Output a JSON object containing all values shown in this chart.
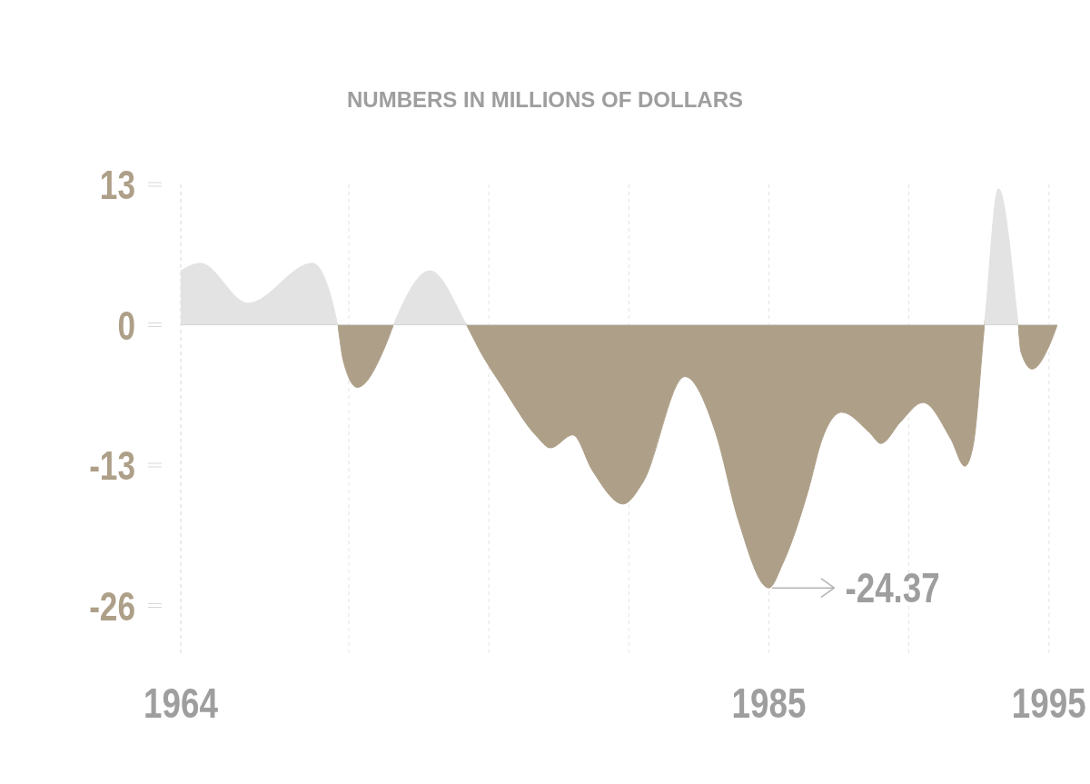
{
  "chart_data": {
    "type": "area",
    "subtitle": "NUMBERS IN MILLIONS OF DOLLARS",
    "x": [
      1964,
      1964.7,
      1966.4,
      1968.7,
      1969.6,
      1969.8,
      1970.3,
      1971.3,
      1971.6,
      1972.9,
      1974.2,
      1974.7,
      1975.5,
      1976.7,
      1977.2,
      1978,
      1978.7,
      1979.8,
      1980.5,
      1982,
      1983.1,
      1983.9,
      1985,
      1985.5,
      1986.4,
      1986.9,
      1987.6,
      1988.6,
      1989,
      1989.7,
      1990.5,
      1991.5,
      1992,
      1992.3,
      1992.7,
      1993.2,
      1993.9,
      1994,
      1994.4,
      1995,
      1995.3
    ],
    "values": [
      5,
      5.7,
      2,
      5.7,
      0,
      -3.3,
      -5.8,
      -2,
      0,
      5,
      0,
      -2.5,
      -5.8,
      -10.3,
      -11.4,
      -10.2,
      -13.5,
      -16.6,
      -14.6,
      -4.8,
      -10,
      -18,
      -24.37,
      -22.1,
      -15.4,
      -10.6,
      -8.1,
      -10,
      -11,
      -9,
      -7.2,
      -10.6,
      -13.1,
      -11.1,
      0,
      12.6,
      0,
      -2.5,
      -4.1,
      -2,
      0
    ],
    "colors": [
      "#e3e3e3",
      "#e3e3e3",
      "#e3e3e3",
      "#e3e3e3",
      "#ae9f88",
      "#ae9f88",
      "#ae9f88",
      "#ae9f88",
      "#ae9f88",
      "#e3e3e3",
      "#ae9f88",
      "#ae9f88",
      "#ae9f88",
      "#ae9f88",
      "#ae9f88",
      "#ae9f88",
      "#ae9f88",
      "#ae9f88",
      "#ae9f88",
      "#ae9f88",
      "#ae9f88",
      "#ae9f88",
      "#ae9f88",
      "#ae9f88",
      "#ae9f88",
      "#ae9f88",
      "#ae9f88",
      "#ae9f88",
      "#ae9f88",
      "#ae9f88",
      "#ae9f88",
      "#ae9f88",
      "#ae9f88",
      "#ae9f88",
      "#ae9f88",
      "#e3e3e3",
      "#ae9f88",
      "#ae9f88",
      "#ae9f88",
      "#ae9f88",
      "#ae9f88"
    ],
    "xlim": [
      1964,
      1995.3
    ],
    "xticks": [
      1964,
      {
        "value": 1970,
        "label": null
      },
      {
        "value": 1975,
        "label": null
      },
      {
        "value": 1980,
        "label": null
      },
      1985,
      {
        "value": 1990,
        "label": null
      },
      1995
    ],
    "ylim": [
      -30.5,
      13
    ],
    "yticks": [
      -26,
      -13,
      0,
      13
    ],
    "grid": "x",
    "ref_lines": [
      {
        "axis": "y",
        "value": 0,
        "color": "#d4d4d4"
      }
    ],
    "annotations": [
      {
        "text": "-24.37",
        "x": 1985,
        "y": -24.37
      }
    ]
  }
}
